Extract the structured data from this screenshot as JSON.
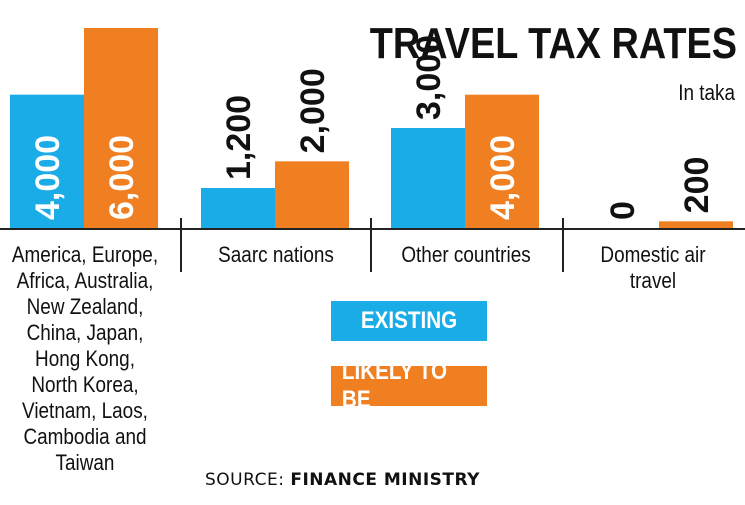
{
  "title": "TRAVEL TAX RATES",
  "subtitle": "In taka",
  "colors": {
    "existing": "#1AACE6",
    "likely": "#F07F22"
  },
  "legend": {
    "existing": "EXISTING",
    "likely": "LIKELY TO BE"
  },
  "source": {
    "label": "SOURCE:",
    "value": "FINANCE MINISTRY"
  },
  "chart_data": {
    "type": "bar",
    "categories": [
      "America, Europe,\nAfrica, Australia,\nNew Zealand,\nChina, Japan,\nHong Kong,\nNorth Korea,\nVietnam, Laos,\nCambodia and\nTaiwan",
      "Saarc nations",
      "Other countries",
      "Domestic air\ntravel"
    ],
    "series": [
      {
        "name": "EXISTING",
        "values": [
          4000,
          1200,
          3000,
          0
        ],
        "labels": [
          "4,000",
          "1,200",
          "3,000",
          "0"
        ]
      },
      {
        "name": "LIKELY TO BE",
        "values": [
          6000,
          2000,
          4000,
          200
        ],
        "labels": [
          "6,000",
          "2,000",
          "4,000",
          "200"
        ]
      }
    ],
    "ylim": [
      0,
      6000
    ]
  }
}
